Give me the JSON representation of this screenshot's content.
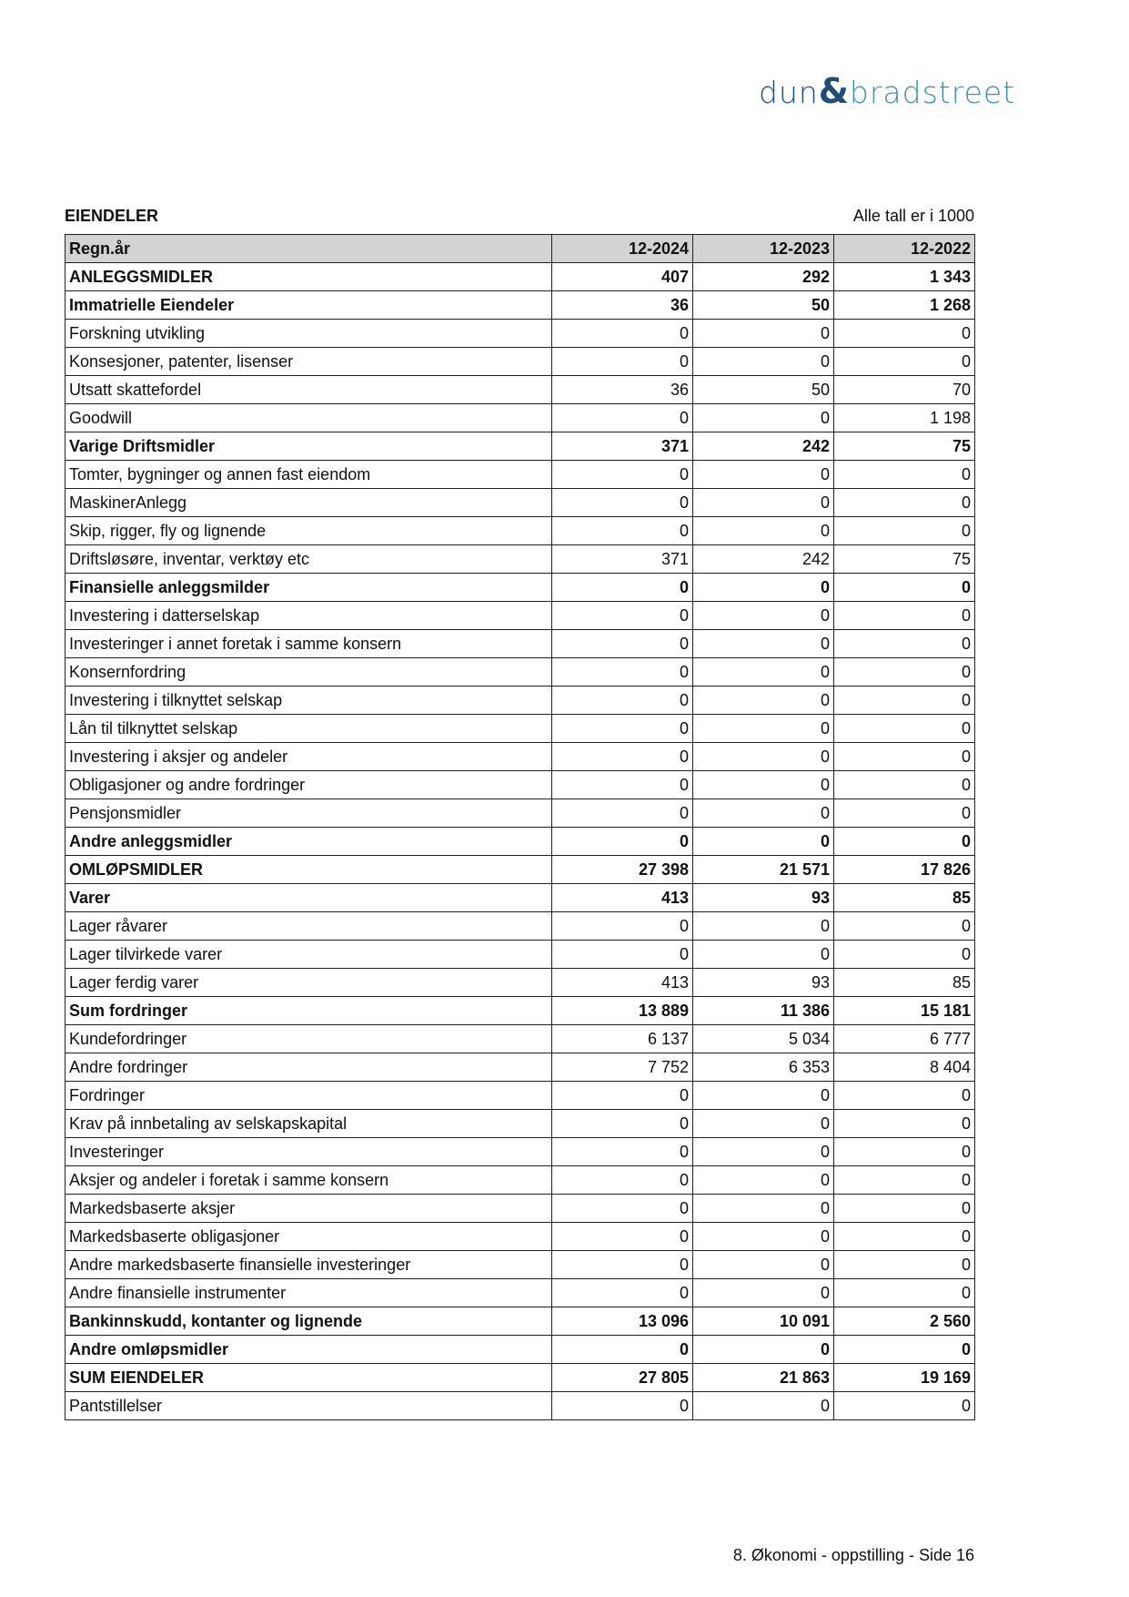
{
  "logo": {
    "part1": "dun",
    "amp": "&",
    "part2": "bradstreet"
  },
  "title": "EIENDELER",
  "unit_note": "Alle tall er i 1000",
  "table": {
    "headers": [
      "Regn.år",
      "12-2024",
      "12-2023",
      "12-2022"
    ],
    "rows": [
      {
        "label": "ANLEGGSMIDLER",
        "values": [
          "407",
          "292",
          "1 343"
        ],
        "bold": true
      },
      {
        "label": "Immatrielle Eiendeler",
        "values": [
          "36",
          "50",
          "1 268"
        ],
        "bold": true
      },
      {
        "label": "Forskning utvikling",
        "values": [
          "0",
          "0",
          "0"
        ]
      },
      {
        "label": "Konsesjoner, patenter, lisenser",
        "values": [
          "0",
          "0",
          "0"
        ]
      },
      {
        "label": "Utsatt skattefordel",
        "values": [
          "36",
          "50",
          "70"
        ]
      },
      {
        "label": "Goodwill",
        "values": [
          "0",
          "0",
          "1 198"
        ]
      },
      {
        "label": "Varige Driftsmidler",
        "values": [
          "371",
          "242",
          "75"
        ],
        "bold": true
      },
      {
        "label": "Tomter, bygninger og annen fast eiendom",
        "values": [
          "0",
          "0",
          "0"
        ]
      },
      {
        "label": "MaskinerAnlegg",
        "values": [
          "0",
          "0",
          "0"
        ]
      },
      {
        "label": "Skip, rigger, fly og lignende",
        "values": [
          "0",
          "0",
          "0"
        ]
      },
      {
        "label": "Driftsløsøre, inventar, verktøy etc",
        "values": [
          "371",
          "242",
          "75"
        ]
      },
      {
        "label": "Finansielle anleggsmilder",
        "values": [
          "0",
          "0",
          "0"
        ],
        "bold": true
      },
      {
        "label": "Investering i datterselskap",
        "values": [
          "0",
          "0",
          "0"
        ]
      },
      {
        "label": "Investeringer i annet foretak i samme konsern",
        "values": [
          "0",
          "0",
          "0"
        ]
      },
      {
        "label": "Konsernfordring",
        "values": [
          "0",
          "0",
          "0"
        ]
      },
      {
        "label": "Investering i tilknyttet selskap",
        "values": [
          "0",
          "0",
          "0"
        ]
      },
      {
        "label": "Lån til tilknyttet selskap",
        "values": [
          "0",
          "0",
          "0"
        ]
      },
      {
        "label": "Investering i aksjer og andeler",
        "values": [
          "0",
          "0",
          "0"
        ]
      },
      {
        "label": "Obligasjoner og andre fordringer",
        "values": [
          "0",
          "0",
          "0"
        ]
      },
      {
        "label": "Pensjonsmidler",
        "values": [
          "0",
          "0",
          "0"
        ]
      },
      {
        "label": "Andre anleggsmidler",
        "values": [
          "0",
          "0",
          "0"
        ],
        "bold": true
      },
      {
        "label": "OMLØPSMIDLER",
        "values": [
          "27 398",
          "21 571",
          "17 826"
        ],
        "bold": true
      },
      {
        "label": "Varer",
        "values": [
          "413",
          "93",
          "85"
        ],
        "bold": true
      },
      {
        "label": "Lager råvarer",
        "values": [
          "0",
          "0",
          "0"
        ]
      },
      {
        "label": "Lager tilvirkede varer",
        "values": [
          "0",
          "0",
          "0"
        ]
      },
      {
        "label": "Lager ferdig varer",
        "values": [
          "413",
          "93",
          "85"
        ]
      },
      {
        "label": "Sum fordringer",
        "values": [
          "13 889",
          "11 386",
          "15 181"
        ],
        "bold": true
      },
      {
        "label": "Kundefordringer",
        "values": [
          "6 137",
          "5 034",
          "6 777"
        ]
      },
      {
        "label": "Andre fordringer",
        "values": [
          "7 752",
          "6 353",
          "8 404"
        ]
      },
      {
        "label": "Fordringer",
        "values": [
          "0",
          "0",
          "0"
        ]
      },
      {
        "label": "Krav på innbetaling av selskapskapital",
        "values": [
          "0",
          "0",
          "0"
        ]
      },
      {
        "label": "Investeringer",
        "values": [
          "0",
          "0",
          "0"
        ]
      },
      {
        "label": "Aksjer og andeler i foretak i samme konsern",
        "values": [
          "0",
          "0",
          "0"
        ]
      },
      {
        "label": "Markedsbaserte aksjer",
        "values": [
          "0",
          "0",
          "0"
        ]
      },
      {
        "label": "Markedsbaserte obligasjoner",
        "values": [
          "0",
          "0",
          "0"
        ]
      },
      {
        "label": "Andre markedsbaserte finansielle investeringer",
        "values": [
          "0",
          "0",
          "0"
        ]
      },
      {
        "label": "Andre finansielle instrumenter",
        "values": [
          "0",
          "0",
          "0"
        ]
      },
      {
        "label": "Bankinnskudd, kontanter og lignende",
        "values": [
          "13 096",
          "10 091",
          "2 560"
        ],
        "bold": true
      },
      {
        "label": "Andre omløpsmidler",
        "values": [
          "0",
          "0",
          "0"
        ],
        "bold": true
      },
      {
        "label": "SUM EIENDELER",
        "values": [
          "27 805",
          "21 863",
          "19 169"
        ],
        "bold": true
      },
      {
        "label": "Pantstillelser",
        "values": [
          "0",
          "0",
          "0"
        ]
      }
    ]
  },
  "footer": "8. Økonomi - oppstilling - Side 16"
}
